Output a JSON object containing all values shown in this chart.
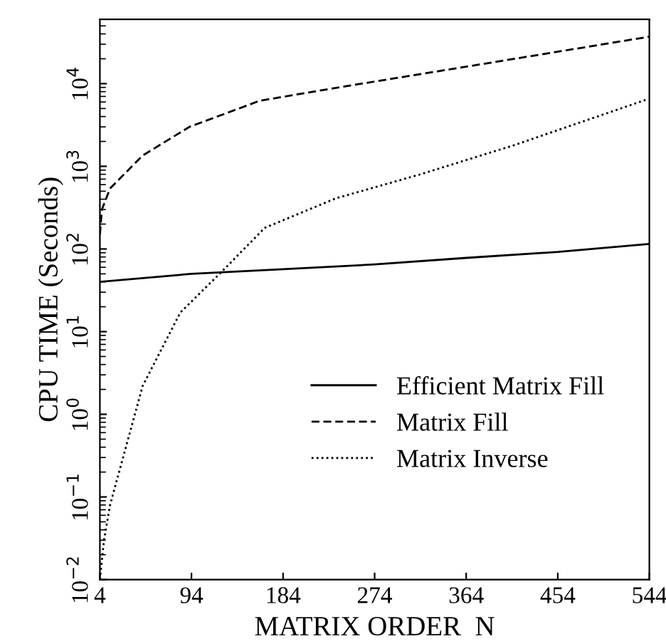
{
  "chart_data": {
    "type": "line",
    "xlabel": "MATRIX ORDER  N",
    "ylabel": "CPU TIME (Seconds)",
    "log": "y",
    "xlim": [
      4,
      544
    ],
    "xticks": [
      4,
      94,
      184,
      274,
      364,
      454,
      544
    ],
    "ylim": [
      0.01,
      60000
    ],
    "yticks": [
      {
        "value": 0.01,
        "label": "10$^{−2}$"
      },
      {
        "value": 0.1,
        "label": "10$^{−1}$"
      },
      {
        "value": 1,
        "label": "10$^{0}$"
      },
      {
        "value": 10,
        "label": "10$^{1}$"
      },
      {
        "value": 100,
        "label": "10$^{2}$"
      },
      {
        "value": 1000,
        "label": "10$^{3}$"
      },
      {
        "value": 10000,
        "label": "10$^{4}$"
      }
    ],
    "grid": false,
    "legend": "bottom right",
    "marker": "none",
    "series": [
      {
        "name": "Efficient Matrix Fill",
        "color": "#000000",
        "line_style": "solid",
        "x": [
          4,
          94,
          184,
          274,
          364,
          454,
          544
        ],
        "values": [
          40,
          50,
          57,
          65,
          78,
          92,
          115
        ]
      },
      {
        "name": "Matrix Fill",
        "color": "#000000",
        "line_style": "dashed",
        "x": [
          4,
          6,
          14,
          46,
          92,
          161,
          236,
          389,
          544
        ],
        "values": [
          150,
          300,
          540,
          1350,
          3000,
          6200,
          8900,
          18000,
          37000
        ]
      },
      {
        "name": "Matrix Inverse",
        "color": "#000000",
        "line_style": "dotted",
        "x": [
          4,
          8,
          14,
          46,
          83,
          125,
          166,
          236,
          319,
          411,
          541
        ],
        "values": [
          0.01,
          0.03,
          0.08,
          2.2,
          17,
          55,
          180,
          410,
          800,
          1800,
          6400
        ]
      }
    ]
  }
}
